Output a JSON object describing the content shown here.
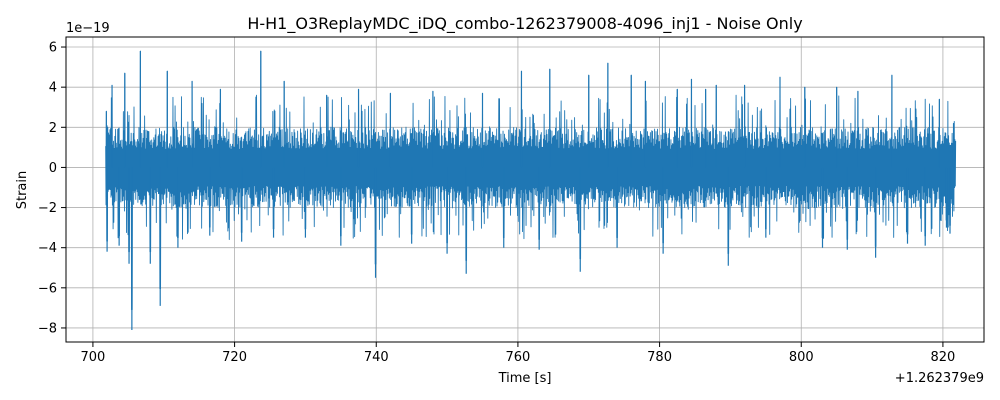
{
  "chart_data": {
    "type": "line",
    "title": "H-H1_O3ReplayMDC_iDQ_combo-1262379008-4096_inj1 - Noise Only",
    "xlabel": "Time [s]",
    "ylabel": "Strain",
    "x_offset_label": "+1.262379e9",
    "y_multiplier_label": "1e−19",
    "xlim": [
      696.2,
      825.8
    ],
    "ylim": [
      -8.7,
      6.5
    ],
    "x_ticks": [
      700,
      720,
      740,
      760,
      780,
      800,
      820
    ],
    "x_tick_labels": [
      "700",
      "720",
      "740",
      "760",
      "780",
      "800",
      "820"
    ],
    "y_ticks": [
      -8,
      -6,
      -4,
      -2,
      0,
      2,
      4,
      6
    ],
    "y_tick_labels": [
      "−8",
      "−6",
      "−4",
      "−2",
      "0",
      "2",
      "4",
      "6"
    ],
    "grid": true,
    "series": [
      {
        "color": "#1f77b4",
        "x_range": [
          701.8,
          821.8
        ],
        "typical_band": [
          -2.0,
          1.9
        ],
        "extremes": [
          {
            "x": 701.9,
            "y": 2.8
          },
          {
            "x": 702.0,
            "y": -4.2
          },
          {
            "x": 702.7,
            "y": 4.1
          },
          {
            "x": 703.7,
            "y": -3.9
          },
          {
            "x": 704.5,
            "y": 4.7
          },
          {
            "x": 705.1,
            "y": -4.8
          },
          {
            "x": 705.5,
            "y": -8.1
          },
          {
            "x": 706.7,
            "y": 5.8
          },
          {
            "x": 708.1,
            "y": -4.8
          },
          {
            "x": 709.5,
            "y": -6.9
          },
          {
            "x": 710.5,
            "y": 4.8
          },
          {
            "x": 712.0,
            "y": -4.0
          },
          {
            "x": 714.0,
            "y": 4.3
          },
          {
            "x": 716.5,
            "y": -3.4
          },
          {
            "x": 718.0,
            "y": 3.9
          },
          {
            "x": 721.0,
            "y": -3.7
          },
          {
            "x": 723.7,
            "y": 5.8
          },
          {
            "x": 725.5,
            "y": -3.5
          },
          {
            "x": 727.0,
            "y": 4.3
          },
          {
            "x": 730.0,
            "y": -3.5
          },
          {
            "x": 733.0,
            "y": 3.6
          },
          {
            "x": 735.0,
            "y": -3.9
          },
          {
            "x": 737.5,
            "y": 3.9
          },
          {
            "x": 739.9,
            "y": -5.5
          },
          {
            "x": 742.0,
            "y": 3.7
          },
          {
            "x": 745.0,
            "y": -3.8
          },
          {
            "x": 748.0,
            "y": 3.8
          },
          {
            "x": 750.0,
            "y": -4.3
          },
          {
            "x": 752.7,
            "y": -5.3
          },
          {
            "x": 755.0,
            "y": 3.7
          },
          {
            "x": 758.0,
            "y": -4.0
          },
          {
            "x": 760.5,
            "y": 4.8
          },
          {
            "x": 763.0,
            "y": -4.1
          },
          {
            "x": 764.5,
            "y": 4.9
          },
          {
            "x": 768.8,
            "y": -5.2
          },
          {
            "x": 770.0,
            "y": 4.6
          },
          {
            "x": 772.7,
            "y": 5.2
          },
          {
            "x": 774.0,
            "y": -4.0
          },
          {
            "x": 776.0,
            "y": 4.6
          },
          {
            "x": 778.0,
            "y": 4.3
          },
          {
            "x": 780.5,
            "y": -4.3
          },
          {
            "x": 782.5,
            "y": 3.9
          },
          {
            "x": 784.5,
            "y": 4.4
          },
          {
            "x": 786.5,
            "y": 3.9
          },
          {
            "x": 788.0,
            "y": 4.1
          },
          {
            "x": 789.7,
            "y": -4.9
          },
          {
            "x": 792.0,
            "y": 4.1
          },
          {
            "x": 795.0,
            "y": -3.5
          },
          {
            "x": 797.0,
            "y": 4.5
          },
          {
            "x": 800.5,
            "y": 4.0
          },
          {
            "x": 803.0,
            "y": -4.0
          },
          {
            "x": 805.0,
            "y": 4.0
          },
          {
            "x": 806.5,
            "y": -4.1
          },
          {
            "x": 808.0,
            "y": 3.8
          },
          {
            "x": 810.5,
            "y": -4.5
          },
          {
            "x": 812.8,
            "y": 4.6
          },
          {
            "x": 815.0,
            "y": -3.8
          },
          {
            "x": 817.5,
            "y": -3.9
          },
          {
            "x": 819.5,
            "y": 3.4
          },
          {
            "x": 820.5,
            "y": -3.0
          },
          {
            "x": 821.0,
            "y": -3.3
          },
          {
            "x": 821.5,
            "y": 2.2
          }
        ]
      }
    ]
  }
}
